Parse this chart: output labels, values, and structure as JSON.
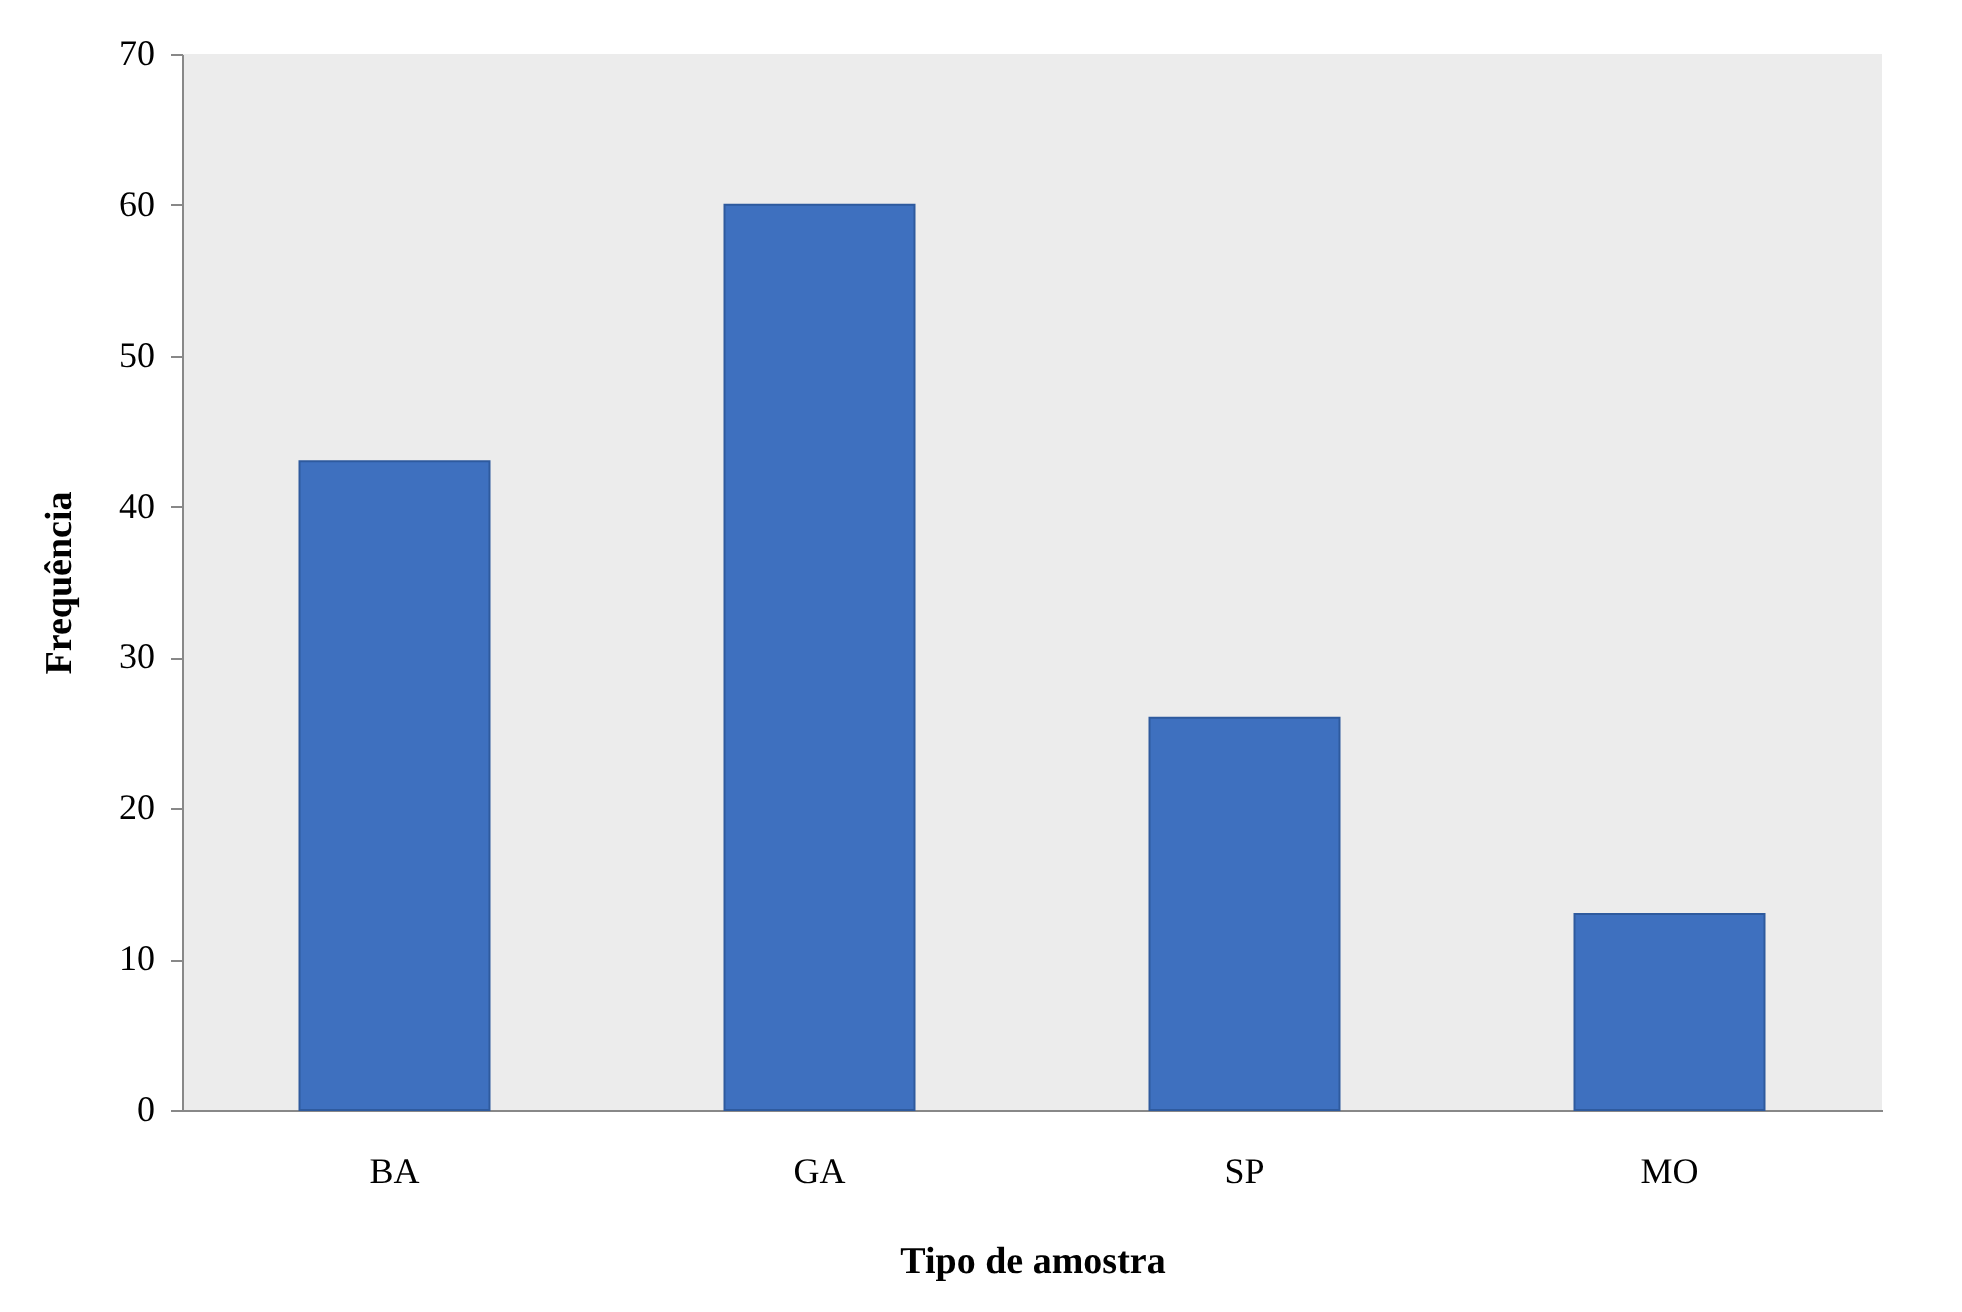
{
  "chart_data": {
    "type": "bar",
    "xlabel": "Tipo de amostra",
    "ylabel": "Frequência",
    "categories": [
      "BA",
      "GA",
      "SP",
      "MO"
    ],
    "values": [
      43,
      60,
      26,
      13
    ],
    "color": "#3e70bf",
    "ylim": [
      0,
      70
    ],
    "yticks": [
      0,
      10,
      20,
      30,
      40,
      50,
      60,
      70
    ],
    "grid": false
  }
}
